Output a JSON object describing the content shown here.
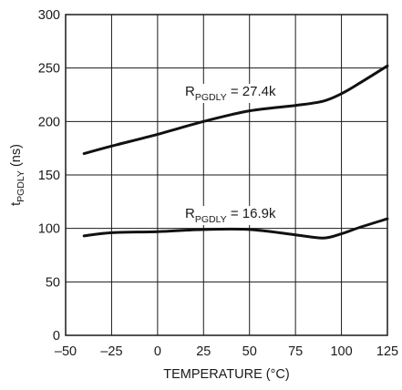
{
  "chart_data": {
    "type": "line",
    "xlabel": "TEMPERATURE (°C)",
    "ylabel": {
      "main": "t",
      "sub": "PGDLY",
      "suffix": " (ns)"
    },
    "xlim": [
      -50,
      125
    ],
    "ylim": [
      0,
      300
    ],
    "x_ticks": [
      -50,
      -25,
      0,
      25,
      50,
      75,
      100,
      125
    ],
    "x_tick_labels": [
      "–50",
      "–25",
      "0",
      "25",
      "50",
      "75",
      "100",
      "125"
    ],
    "y_ticks": [
      0,
      50,
      100,
      150,
      200,
      250,
      300
    ],
    "y_tick_labels": [
      "0",
      "50",
      "100",
      "150",
      "200",
      "250",
      "300"
    ],
    "grid": true,
    "series": [
      {
        "name": "RPGDLY = 27.4k",
        "label": {
          "main": "R",
          "sub": "PGDLY",
          "suffix": " = 27.4k"
        },
        "x": [
          -40,
          -25,
          0,
          25,
          50,
          75,
          90,
          100,
          110,
          125
        ],
        "y": [
          170,
          177,
          188,
          200,
          210,
          215,
          219,
          226,
          236,
          252
        ]
      },
      {
        "name": "RPGDLY = 16.9k",
        "label": {
          "main": "R",
          "sub": "PGDLY",
          "suffix": " = 16.9k"
        },
        "x": [
          -40,
          -25,
          0,
          25,
          50,
          75,
          90,
          100,
          110,
          125
        ],
        "y": [
          93,
          96,
          97,
          99,
          99,
          94,
          91,
          95,
          101,
          109
        ]
      }
    ]
  }
}
